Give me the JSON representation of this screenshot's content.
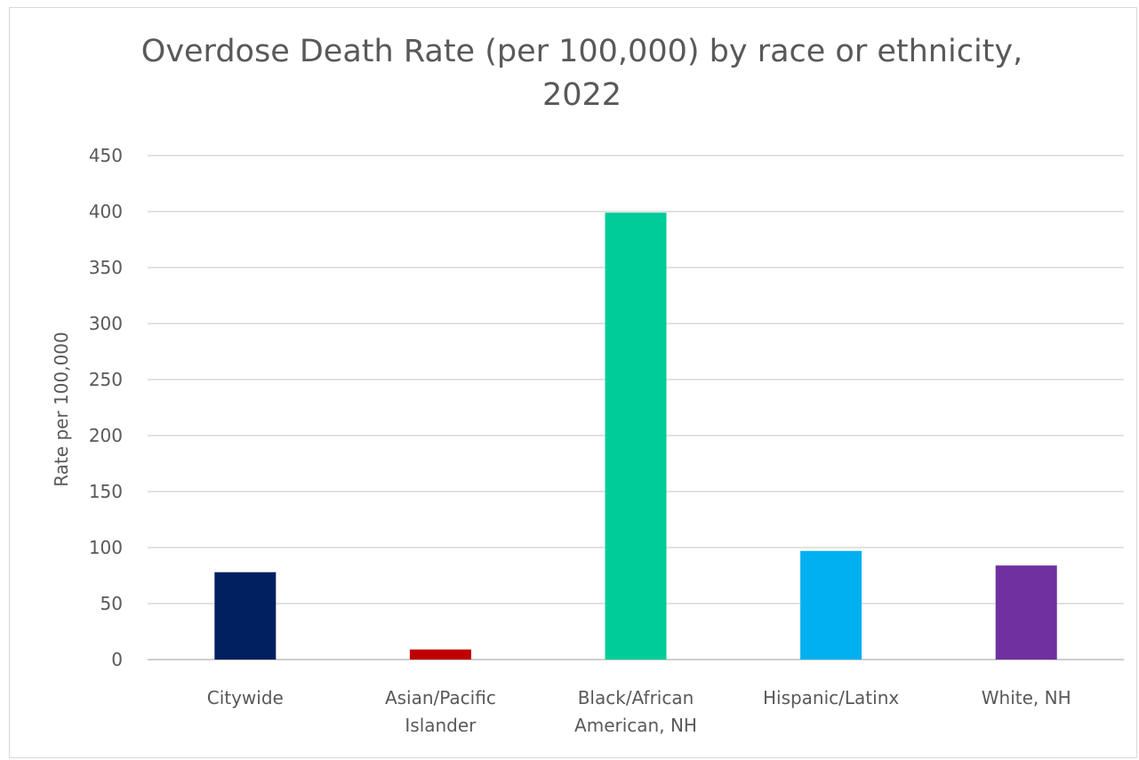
{
  "chart_data": {
    "type": "bar",
    "title": "Overdose Death Rate (per 100,000) by race or ethnicity,",
    "title_line2": "2022",
    "ylabel": "Rate per 100,000",
    "xlabel": "",
    "ylim": [
      0,
      450
    ],
    "yticks": [
      0,
      50,
      100,
      150,
      200,
      250,
      300,
      350,
      400,
      450
    ],
    "grid": true,
    "legend": "none",
    "categories": [
      [
        "Citywide"
      ],
      [
        "Asian/Pacific",
        "Islander"
      ],
      [
        "Black/African",
        "American, NH"
      ],
      [
        "Hispanic/Latinx"
      ],
      [
        "White, NH"
      ]
    ],
    "values": [
      78,
      9,
      399,
      97,
      84
    ],
    "colors": [
      "#002060",
      "#c00000",
      "#00cc99",
      "#00b0f0",
      "#7030a0"
    ]
  }
}
